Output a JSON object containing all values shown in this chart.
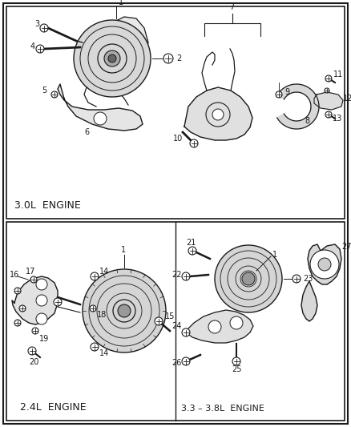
{
  "bg_color": "#ffffff",
  "border_color": "#1a1a1a",
  "line_color": "#1a1a1a",
  "text_color": "#1a1a1a",
  "panel1_label": "3.0L  ENGINE",
  "panel2_label": "2.4L  ENGINE",
  "panel3_label": "3.3 – 3.8L  ENGINE",
  "figsize": [
    4.38,
    5.33
  ],
  "dpi": 100
}
